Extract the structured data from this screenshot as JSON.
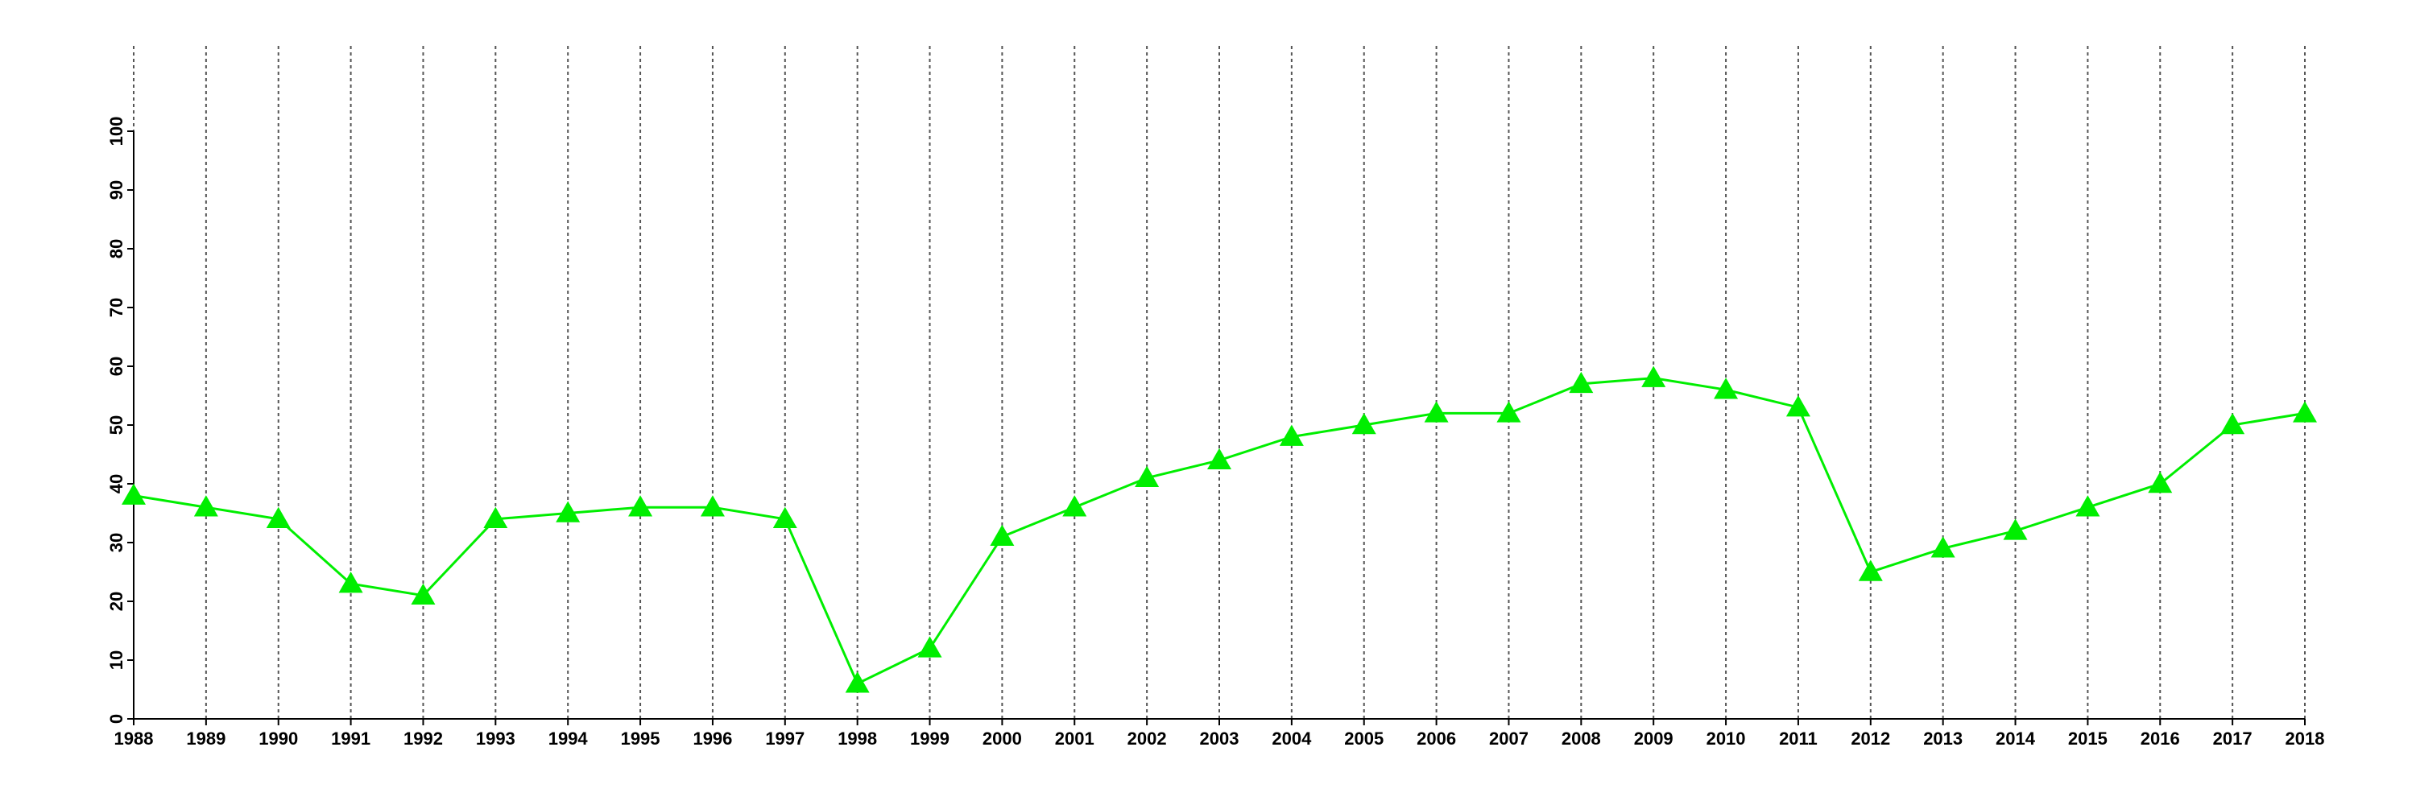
{
  "chart_data": {
    "type": "line",
    "x": [
      1988,
      1989,
      1990,
      1991,
      1992,
      1993,
      1994,
      1995,
      1996,
      1997,
      1998,
      1999,
      2000,
      2001,
      2002,
      2003,
      2004,
      2005,
      2006,
      2007,
      2008,
      2009,
      2010,
      2011,
      2012,
      2013,
      2014,
      2015,
      2016,
      2017,
      2018
    ],
    "series": [
      {
        "color": "#00ee00",
        "values": [
          38,
          36,
          34,
          23,
          21,
          34,
          35,
          36,
          36,
          34,
          6,
          12,
          31,
          36,
          41,
          44,
          48,
          50,
          52,
          52,
          57,
          58,
          56,
          53,
          25,
          29,
          32,
          36,
          40,
          50,
          52
        ]
      }
    ],
    "xlim": [
      1988,
      2018
    ],
    "xticks": [
      1988,
      1989,
      1990,
      1991,
      1992,
      1993,
      1994,
      1995,
      1996,
      1997,
      1998,
      1999,
      2000,
      2001,
      2002,
      2003,
      2004,
      2005,
      2006,
      2007,
      2008,
      2009,
      2010,
      2011,
      2012,
      2013,
      2014,
      2015,
      2016,
      2017,
      2018
    ],
    "ylim": [
      0,
      100
    ],
    "yticks": [
      0,
      10,
      20,
      30,
      40,
      50,
      60,
      70,
      80,
      90,
      100
    ],
    "grid": true
  }
}
